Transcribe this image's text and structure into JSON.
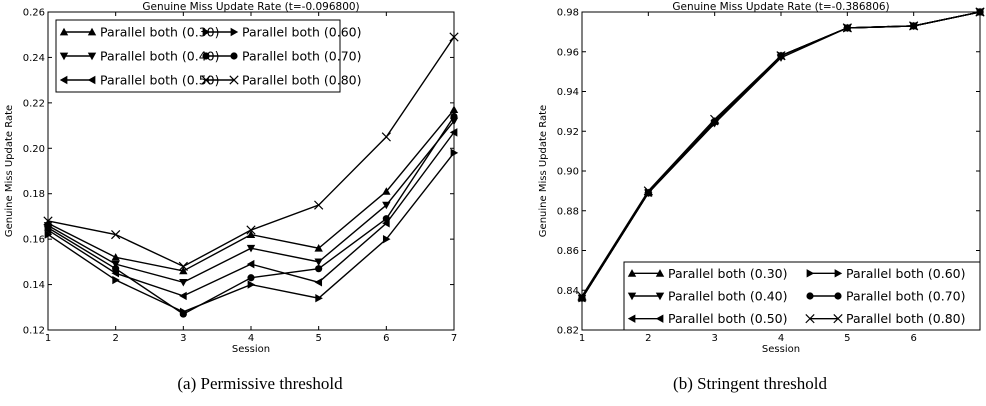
{
  "chart_data": [
    {
      "type": "line",
      "title": "Genuine Miss Update Rate (t=-0.096800)",
      "xlabel": "Session",
      "ylabel": "Genuine Miss Update Rate",
      "xlim": [
        1,
        7
      ],
      "ylim": [
        0.12,
        0.26
      ],
      "x": [
        1,
        2,
        3,
        4,
        5,
        6,
        7
      ],
      "xticks": [
        "1",
        "2",
        "3",
        "4",
        "5",
        "6",
        "7"
      ],
      "yticks": [
        "0.12",
        "0.14",
        "0.16",
        "0.18",
        "0.20",
        "0.22",
        "0.24",
        "0.26"
      ],
      "legend_position": "top-left",
      "series": [
        {
          "name": "Parallel both (0.30)",
          "marker": "triangle-up",
          "values": [
            0.167,
            0.152,
            0.146,
            0.162,
            0.156,
            0.181,
            0.217
          ]
        },
        {
          "name": "Parallel both (0.40)",
          "marker": "triangle-down",
          "values": [
            0.166,
            0.149,
            0.141,
            0.156,
            0.15,
            0.175,
            0.212
          ]
        },
        {
          "name": "Parallel both (0.50)",
          "marker": "triangle-left",
          "values": [
            0.164,
            0.145,
            0.135,
            0.149,
            0.141,
            0.167,
            0.207
          ]
        },
        {
          "name": "Parallel both (0.60)",
          "marker": "triangle-right",
          "values": [
            0.162,
            0.142,
            0.128,
            0.14,
            0.134,
            0.16,
            0.198
          ]
        },
        {
          "name": "Parallel both (0.70)",
          "marker": "circle",
          "values": [
            0.165,
            0.147,
            0.127,
            0.143,
            0.147,
            0.169,
            0.214
          ]
        },
        {
          "name": "Parallel both (0.80)",
          "marker": "x",
          "values": [
            0.168,
            0.162,
            0.148,
            0.164,
            0.175,
            0.205,
            0.249
          ]
        }
      ]
    },
    {
      "type": "line",
      "title": "Genuine Miss Update Rate (t=-0.386806)",
      "xlabel": "Session",
      "ylabel": "Genuine Miss Update Rate",
      "xlim": [
        1,
        7
      ],
      "ylim": [
        0.82,
        0.98
      ],
      "x": [
        1,
        2,
        3,
        4,
        5,
        6,
        7
      ],
      "xticks": [
        "1",
        "2",
        "3",
        "4",
        "5",
        "6"
      ],
      "yticks": [
        "0.82",
        "0.84",
        "0.86",
        "0.88",
        "0.90",
        "0.92",
        "0.94",
        "0.96",
        "0.98"
      ],
      "legend_position": "bottom-right",
      "series": [
        {
          "name": "Parallel both (0.30)",
          "marker": "triangle-up",
          "values": [
            0.836,
            0.889,
            0.925,
            0.958,
            0.972,
            0.973,
            0.98
          ]
        },
        {
          "name": "Parallel both (0.40)",
          "marker": "triangle-down",
          "values": [
            0.836,
            0.889,
            0.924,
            0.957,
            0.972,
            0.973,
            0.98
          ]
        },
        {
          "name": "Parallel both (0.50)",
          "marker": "triangle-left",
          "values": [
            0.836,
            0.889,
            0.925,
            0.958,
            0.972,
            0.973,
            0.98
          ]
        },
        {
          "name": "Parallel both (0.60)",
          "marker": "triangle-right",
          "values": [
            0.836,
            0.889,
            0.924,
            0.958,
            0.972,
            0.973,
            0.98
          ]
        },
        {
          "name": "Parallel both (0.70)",
          "marker": "circle",
          "values": [
            0.836,
            0.889,
            0.925,
            0.958,
            0.972,
            0.973,
            0.98
          ]
        },
        {
          "name": "Parallel both (0.80)",
          "marker": "x",
          "values": [
            0.837,
            0.89,
            0.926,
            0.958,
            0.972,
            0.973,
            0.98
          ]
        }
      ]
    }
  ],
  "captions": {
    "a": "(a) Permissive threshold",
    "b": "(b) Stringent threshold"
  }
}
